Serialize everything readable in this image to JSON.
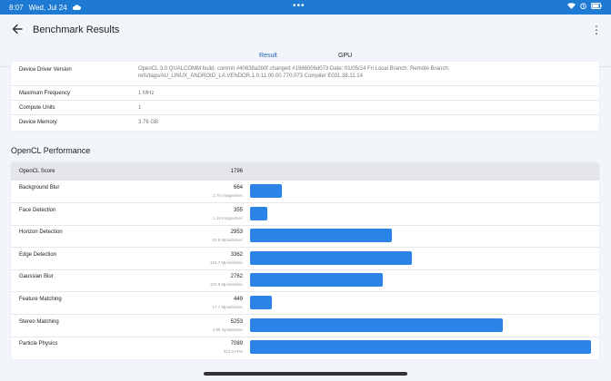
{
  "status_bar": {
    "time": "8:07",
    "date": "Wed, Jul 24",
    "center_dots": "•••",
    "icons": [
      "cloud-icon",
      "wifi-icon",
      "alarm-icon",
      "battery-icon"
    ]
  },
  "app_bar": {
    "title": "Benchmark Results",
    "back_icon": "arrow-back-icon",
    "menu_icon": "more-vert-icon",
    "menu_glyph": "⋮"
  },
  "tabs": [
    {
      "label": "Result",
      "active": true
    },
    {
      "label": "GPU",
      "active": false
    }
  ],
  "device_info": [
    {
      "key": "Device Driver Version",
      "value": "OpenCL 3.0 QUALCOMM build: commit #40638a2b0f changed #1986006d073 Date: 01/05/24 Fri Local Branch: Remote Branch: refs/tags/AU_LINUX_ANDROID_LA.VENDOR.1.0.11.00.00.770.073 Compiler E031.38.11.14"
    },
    {
      "key": "Maximum Frequency",
      "value": "1 MHz"
    },
    {
      "key": "Compute Units",
      "value": "1"
    },
    {
      "key": "Device Memory",
      "value": "3.76 GB"
    }
  ],
  "performance": {
    "section_title": "OpenCL Performance",
    "header": {
      "label": "OpenCL Score",
      "score": "1796"
    },
    "max_score": 7089,
    "benchmarks": [
      {
        "name": "Background Blur",
        "score": 664,
        "rate": "2.75 images/sec"
      },
      {
        "name": "Face Detection",
        "score": 355,
        "rate": "1.16 images/sec"
      },
      {
        "name": "Horizon Detection",
        "score": 2953,
        "rate": "91.9 Mpixels/sec"
      },
      {
        "name": "Edge Detection",
        "score": 3362,
        "rate": "124.7 Mpixels/sec"
      },
      {
        "name": "Gaussian Blur",
        "score": 2762,
        "rate": "120.9 Mpixels/sec"
      },
      {
        "name": "Feature Matching",
        "score": 449,
        "rate": "17.7 Mpixels/sec"
      },
      {
        "name": "Stereo Matching",
        "score": 5253,
        "rate": "4.99 Gpixels/sec"
      },
      {
        "name": "Particle Physics",
        "score": 7089,
        "rate": "312.0 FPS"
      }
    ]
  },
  "colors": {
    "status_bar": "#1f7ad3",
    "accent": "#1f62b8",
    "bar": "#2a84e8"
  }
}
